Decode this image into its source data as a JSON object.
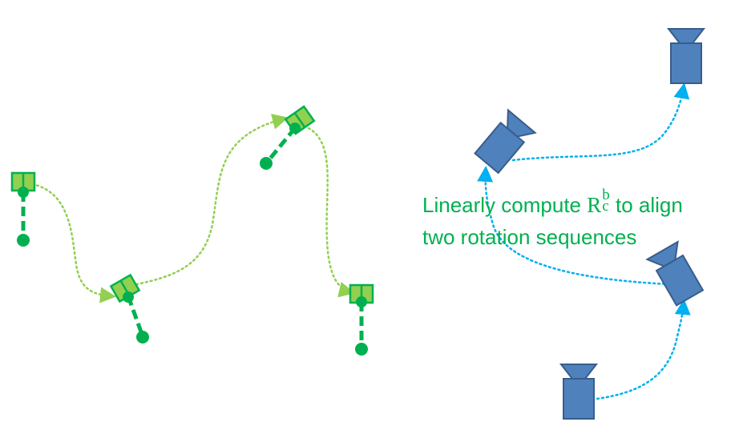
{
  "caption": {
    "line1_before": "Linearly compute ",
    "symbol": "R",
    "subscript": "c",
    "superscript": "b",
    "line1_after": " to align",
    "line2": "two rotation sequences"
  },
  "colors": {
    "imu_green": "#00b050",
    "imu_fill": "#92d050",
    "imu_path": "#92d050",
    "camera_fill": "#4f81bd",
    "camera_stroke": "#385d8a",
    "camera_path": "#00b0f0",
    "caption": "#00b050"
  }
}
